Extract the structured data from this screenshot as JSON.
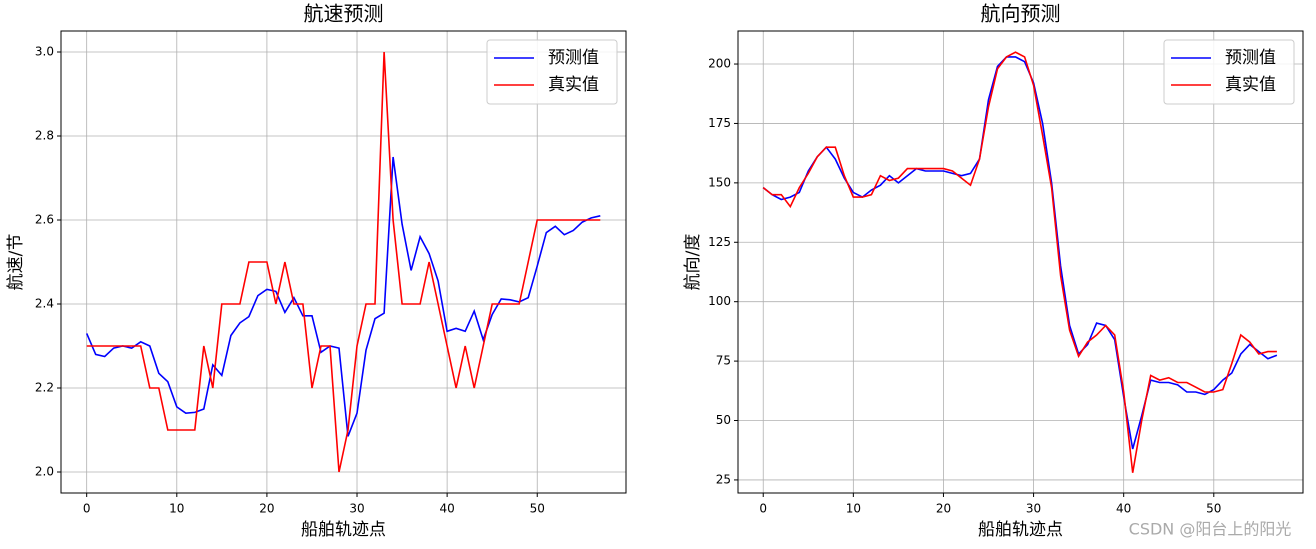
{
  "chart_data": [
    {
      "type": "line",
      "title": "航速预测",
      "xlabel": "船舶轨迹点",
      "ylabel": "航速/节",
      "x": [
        0,
        1,
        2,
        3,
        4,
        5,
        6,
        7,
        8,
        9,
        10,
        11,
        12,
        13,
        14,
        15,
        16,
        17,
        18,
        19,
        20,
        21,
        22,
        23,
        24,
        25,
        26,
        27,
        28,
        29,
        30,
        31,
        32,
        33,
        34,
        35,
        36,
        37,
        38,
        39,
        40,
        41,
        42,
        43,
        44,
        45,
        46,
        47,
        48,
        49,
        50,
        51,
        52,
        53,
        54,
        55,
        56,
        57
      ],
      "series": [
        {
          "name": "预测值",
          "color": "#0000ff",
          "values": [
            2.33,
            2.28,
            2.275,
            2.295,
            2.3,
            2.295,
            2.31,
            2.3,
            2.235,
            2.215,
            2.155,
            2.14,
            2.142,
            2.15,
            2.255,
            2.23,
            2.325,
            2.355,
            2.37,
            2.42,
            2.435,
            2.43,
            2.38,
            2.415,
            2.372,
            2.372,
            2.285,
            2.3,
            2.295,
            2.085,
            2.14,
            2.29,
            2.365,
            2.378,
            2.75,
            2.59,
            2.48,
            2.56,
            2.52,
            2.455,
            2.335,
            2.342,
            2.335,
            2.383,
            2.315,
            2.375,
            2.412,
            2.41,
            2.405,
            2.415,
            2.49,
            2.57,
            2.585,
            2.565,
            2.575,
            2.595,
            2.605,
            2.61
          ]
        },
        {
          "name": "真实值",
          "color": "#ff0000",
          "values": [
            2.3,
            2.3,
            2.3,
            2.3,
            2.3,
            2.3,
            2.3,
            2.2,
            2.2,
            2.1,
            2.1,
            2.1,
            2.1,
            2.3,
            2.2,
            2.4,
            2.4,
            2.4,
            2.5,
            2.5,
            2.5,
            2.4,
            2.5,
            2.4,
            2.4,
            2.2,
            2.3,
            2.3,
            2.0,
            2.1,
            2.3,
            2.4,
            2.4,
            3.0,
            2.6,
            2.4,
            2.4,
            2.4,
            2.5,
            2.4,
            2.3,
            2.2,
            2.3,
            2.2,
            2.3,
            2.4,
            2.4,
            2.4,
            2.4,
            2.5,
            2.6,
            2.6,
            2.6,
            2.6,
            2.6,
            2.6,
            2.6,
            2.6
          ]
        }
      ],
      "xlim": [
        -2.85,
        59.85
      ],
      "ylim": [
        1.95,
        3.05
      ],
      "xticks": [
        0,
        10,
        20,
        30,
        40,
        50
      ],
      "yticks": [
        {
          "value": 2,
          "label": "2.0"
        },
        2.2,
        2.4,
        2.6,
        2.8,
        {
          "value": 3,
          "label": "3.0"
        }
      ],
      "grid": true,
      "legend": "upper right"
    },
    {
      "type": "line",
      "title": "航向预测",
      "xlabel": "船舶轨迹点",
      "ylabel": "航向/度",
      "x": [
        0,
        1,
        2,
        3,
        4,
        5,
        6,
        7,
        8,
        9,
        10,
        11,
        12,
        13,
        14,
        15,
        16,
        17,
        18,
        19,
        20,
        21,
        22,
        23,
        24,
        25,
        26,
        27,
        28,
        29,
        30,
        31,
        32,
        33,
        34,
        35,
        36,
        37,
        38,
        39,
        40,
        41,
        42,
        43,
        44,
        45,
        46,
        47,
        48,
        49,
        50,
        51,
        52,
        53,
        54,
        55,
        56,
        57
      ],
      "series": [
        {
          "name": "预测值",
          "color": "#0000ff",
          "values": [
            148,
            145,
            143,
            144,
            146,
            155,
            161,
            165,
            160,
            152,
            146,
            144,
            147,
            149,
            153,
            150,
            153,
            156,
            155,
            155,
            155,
            154,
            153,
            154,
            160,
            185,
            199,
            203,
            203,
            201,
            192,
            175,
            150,
            115,
            90,
            78,
            82,
            91,
            90,
            84,
            60,
            38,
            52,
            67,
            66,
            66,
            65,
            62,
            62,
            61,
            63,
            67,
            70,
            78,
            82,
            79,
            76,
            77.5
          ]
        },
        {
          "name": "真实值",
          "color": "#ff0000",
          "values": [
            148,
            145,
            145,
            140,
            148,
            154,
            161,
            165,
            165,
            153,
            144,
            144,
            145,
            153,
            151,
            152,
            156,
            156,
            156,
            156,
            156,
            155,
            152,
            149,
            160,
            182,
            198,
            203,
            205,
            203,
            191,
            170,
            148,
            111,
            88,
            77,
            83,
            86,
            90,
            86,
            62,
            28,
            50,
            69,
            67,
            68,
            66,
            66,
            64,
            62,
            62,
            63,
            74,
            86,
            83,
            78,
            79,
            79
          ]
        }
      ],
      "xlim": [
        -2.8,
        59.9
      ],
      "ylim": [
        19.5,
        213.9
      ],
      "xticks": [
        0,
        10,
        20,
        30,
        40,
        50
      ],
      "yticks": [
        25,
        50,
        75,
        100,
        125,
        150,
        175,
        200
      ],
      "grid": true,
      "legend": "upper right"
    }
  ],
  "watermark": "CSDN @阳台上的阳光"
}
